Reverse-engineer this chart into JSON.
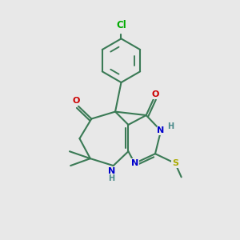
{
  "bg": "#e8e8e8",
  "bond_color": "#3a7a55",
  "bond_lw": 1.5,
  "dbl_sep": 0.1,
  "colors": {
    "N": "#0000cc",
    "O": "#cc0000",
    "S": "#aaaa00",
    "Cl": "#00aa00",
    "H": "#4a8a8a",
    "C": "#3a7a55"
  },
  "fs": 8.0,
  "figsize": [
    3.0,
    3.0
  ],
  "dpi": 100,
  "xlim": [
    0,
    10
  ],
  "ylim": [
    0,
    10
  ]
}
